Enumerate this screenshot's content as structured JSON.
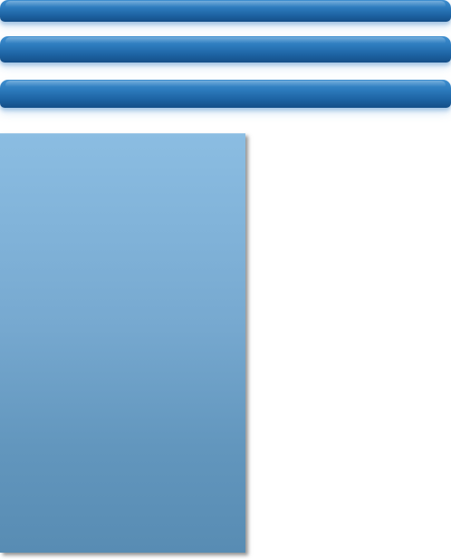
{
  "accordion": {
    "headers": [
      {
        "label": ""
      },
      {
        "label": ""
      },
      {
        "label": ""
      }
    ]
  },
  "panel": {
    "content": ""
  },
  "colors": {
    "header_top": "#3f8fd0",
    "header_bottom": "#154f88",
    "panel_top": "#8bbde2",
    "panel_bottom": "#588cb3",
    "background": "#ffffff"
  }
}
